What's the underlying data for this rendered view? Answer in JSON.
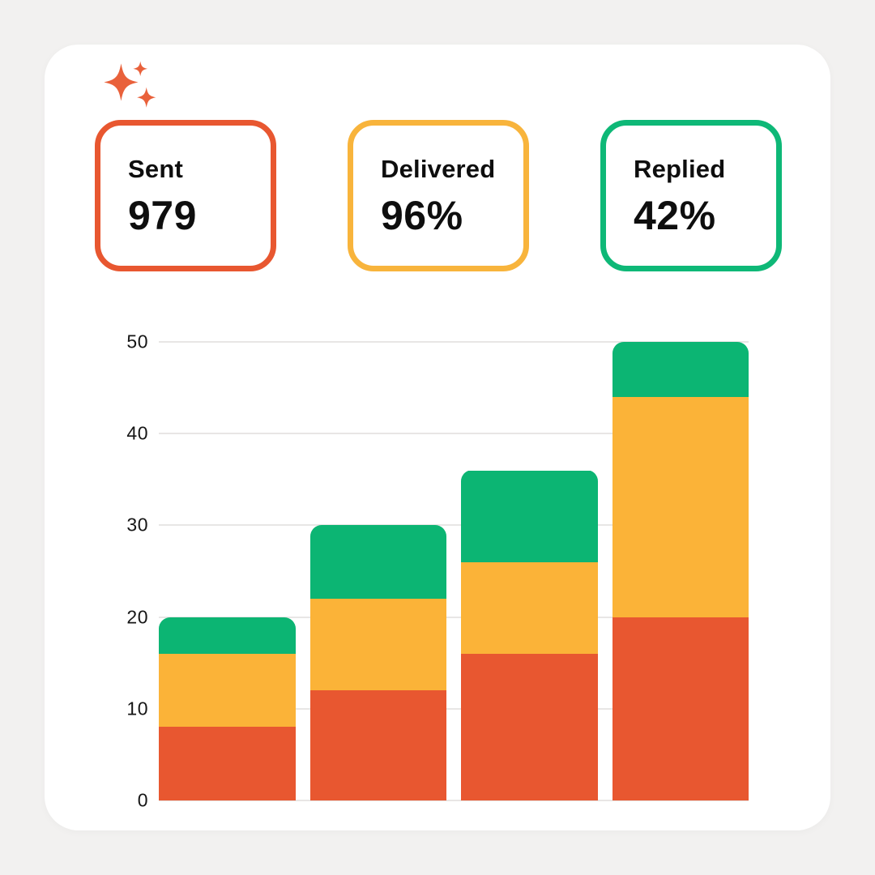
{
  "page": {
    "background": "#F2F1F0"
  },
  "card": {
    "background": "#FFFFFF",
    "sparkle_color": "#E9613B"
  },
  "stats": [
    {
      "label": "Sent",
      "value": "979",
      "accent": "#E85730"
    },
    {
      "label": "Delivered",
      "value": "96%",
      "accent": "#F8B43C"
    },
    {
      "label": "Replied",
      "value": "42%",
      "accent": "#0EB877"
    }
  ],
  "chart_data": {
    "type": "bar",
    "stacked": true,
    "title": "",
    "xlabel": "",
    "ylabel": "",
    "x_labels": [],
    "series": [
      {
        "name": "sent",
        "color": "#E85730",
        "values": [
          8,
          12,
          16,
          20
        ]
      },
      {
        "name": "delivered",
        "color": "#FBB338",
        "values": [
          8,
          10,
          10,
          24
        ]
      },
      {
        "name": "replied",
        "color": "#0CB573",
        "values": [
          4,
          8,
          10,
          6
        ]
      }
    ],
    "stack_totals": [
      20,
      30,
      36,
      50
    ],
    "ylim": [
      0,
      50
    ],
    "yticks": [
      0,
      10,
      20,
      30,
      40,
      50
    ],
    "grid": true,
    "grid_color": "#E8E6E5",
    "tick_color": "#161616",
    "legend": false
  }
}
